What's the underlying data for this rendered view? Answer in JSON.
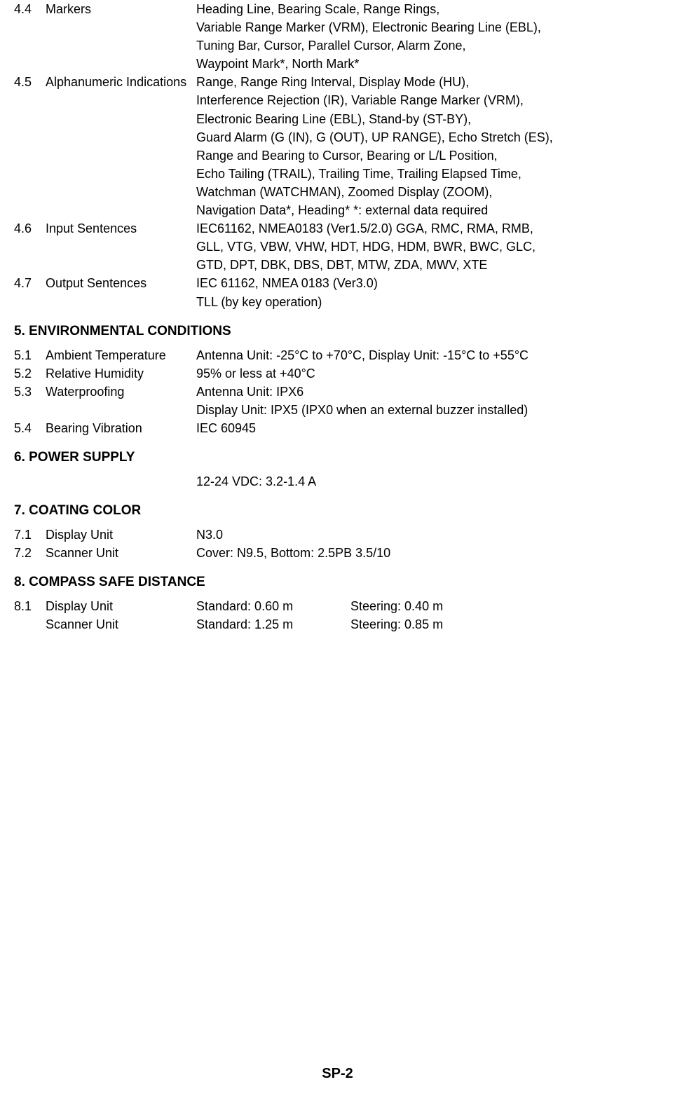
{
  "section4": {
    "items": [
      {
        "num": "4.4",
        "label": "Markers",
        "value": "Heading Line, Bearing Scale, Range Rings,",
        "continuations": [
          "Variable Range Marker (VRM), Electronic Bearing Line (EBL),",
          "Tuning Bar, Cursor, Parallel Cursor, Alarm Zone,",
          "Waypoint Mark*, North Mark*"
        ]
      },
      {
        "num": "4.5",
        "label": "Alphanumeric Indications",
        "value": "Range, Range Ring Interval, Display Mode (HU),",
        "continuations": [
          "Interference Rejection (IR), Variable Range Marker (VRM),",
          "Electronic Bearing Line (EBL), Stand-by (ST-BY),",
          "Guard Alarm (G (IN), G (OUT), UP RANGE), Echo Stretch (ES),",
          "Range and Bearing to Cursor, Bearing or L/L Position,",
          "Echo Tailing (TRAIL), Trailing Time, Trailing Elapsed Time,",
          "Watchman (WATCHMAN), Zoomed Display (ZOOM),",
          "Navigation Data*, Heading*    *: external data required"
        ]
      },
      {
        "num": "4.6",
        "label": "Input Sentences",
        "value": "IEC61162, NMEA0183 (Ver1.5/2.0) GGA, RMC, RMA, RMB,",
        "continuations": [
          "GLL, VTG, VBW, VHW, HDT, HDG, HDM, BWR, BWC, GLC,",
          "GTD, DPT, DBK, DBS, DBT, MTW, ZDA, MWV, XTE"
        ]
      },
      {
        "num": "4.7",
        "label": "Output Sentences",
        "value": "IEC 61162, NMEA 0183 (Ver3.0)",
        "continuations": [
          " TLL (by key operation)"
        ]
      }
    ]
  },
  "section5": {
    "heading": "5. ENVIRONMENTAL CONDITIONS",
    "items": [
      {
        "num": "5.1",
        "label": "Ambient Temperature",
        "value": "Antenna Unit: -25°C to +70°C, Display Unit: -15°C to +55°C",
        "continuations": []
      },
      {
        "num": "5.2",
        "label": "Relative Humidity",
        "value": "95% or less at +40°C",
        "continuations": []
      },
      {
        "num": "5.3",
        "label": "Waterproofing",
        "value": "Antenna Unit: IPX6",
        "continuations": [
          "Display Unit: IPX5 (IPX0 when an external buzzer installed)"
        ]
      },
      {
        "num": "5.4",
        "label": "Bearing Vibration",
        "value": "IEC 60945",
        "continuations": []
      }
    ]
  },
  "section6": {
    "heading": "6. POWER SUPPLY",
    "value": "12-24 VDC: 3.2-1.4 A"
  },
  "section7": {
    "heading": "7. COATING COLOR",
    "items": [
      {
        "num": "7.1",
        "label": "Display Unit",
        "value": "N3.0",
        "continuations": []
      },
      {
        "num": "7.2",
        "label": "Scanner Unit",
        "value": "Cover: N9.5, Bottom: 2.5PB 3.5/10",
        "continuations": []
      }
    ]
  },
  "section8": {
    "heading": "8. COMPASS SAFE DISTANCE",
    "items": [
      {
        "num": "8.1",
        "label": "Display Unit",
        "standard": "Standard: 0.60 m",
        "steering": "Steering: 0.40 m"
      },
      {
        "num": "",
        "label": "Scanner Unit",
        "standard": "Standard: 1.25 m",
        "steering": "Steering: 0.85 m"
      }
    ]
  },
  "pageNumber": "SP-2"
}
